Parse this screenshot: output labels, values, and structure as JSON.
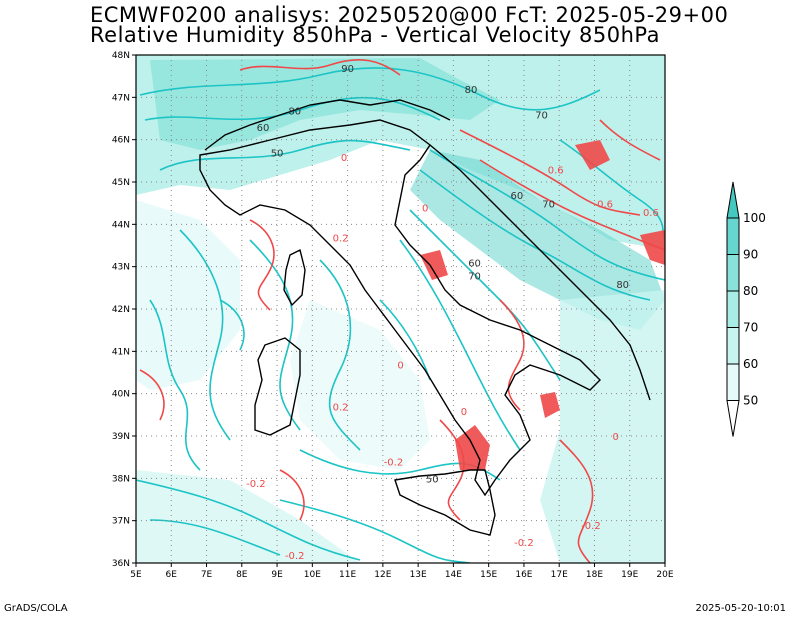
{
  "title_line1": "ECMWF0200 analisys: 20250520@00 FcT: 2025-05-29+00",
  "title_line2": "Relative Humidity 850hPa - Vertical Velocity 850hPa",
  "footer_left": "GrADS/COLA",
  "footer_right": "2025-05-20-10:01",
  "map": {
    "lat_labels": [
      "48N",
      "47N",
      "46N",
      "45N",
      "44N",
      "43N",
      "42N",
      "41N",
      "40N",
      "39N",
      "38N",
      "37N",
      "36N"
    ],
    "lon_labels": [
      "5E",
      "6E",
      "7E",
      "8E",
      "9E",
      "10E",
      "11E",
      "12E",
      "13E",
      "14E",
      "15E",
      "16E",
      "17E",
      "18E",
      "19E",
      "20E"
    ],
    "contour_labels": [
      {
        "text": "90",
        "lon": 11.0,
        "lat": 47.6
      },
      {
        "text": "80",
        "lon": 14.5,
        "lat": 47.1
      },
      {
        "text": "80",
        "lon": 9.5,
        "lat": 46.6
      },
      {
        "text": "60",
        "lon": 8.6,
        "lat": 46.2
      },
      {
        "text": "50",
        "lon": 9.0,
        "lat": 45.6
      },
      {
        "text": "70",
        "lon": 16.5,
        "lat": 46.5
      },
      {
        "text": "60",
        "lon": 15.8,
        "lat": 44.6
      },
      {
        "text": "70",
        "lon": 16.7,
        "lat": 44.4
      },
      {
        "text": "60",
        "lon": 14.6,
        "lat": 43.0
      },
      {
        "text": "70",
        "lon": 14.6,
        "lat": 42.7
      },
      {
        "text": "80",
        "lon": 18.8,
        "lat": 42.5
      },
      {
        "text": "50",
        "lon": 13.4,
        "lat": 37.9
      },
      {
        "text": "0.6",
        "lon": 16.9,
        "lat": 45.2
      },
      {
        "text": "0.6",
        "lon": 18.3,
        "lat": 44.4
      },
      {
        "text": "0.6",
        "lon": 19.6,
        "lat": 44.2
      },
      {
        "text": "-0.2",
        "lon": 12.3,
        "lat": 38.3
      },
      {
        "text": "-0.2",
        "lon": 8.4,
        "lat": 37.8
      },
      {
        "text": "-0.2",
        "lon": 17.9,
        "lat": 36.8
      },
      {
        "text": "-0.2",
        "lon": 16.0,
        "lat": 36.4
      },
      {
        "text": "-0.2",
        "lon": 9.5,
        "lat": 36.1
      },
      {
        "text": "0.2",
        "lon": 10.8,
        "lat": 43.6
      },
      {
        "text": "0.2",
        "lon": 10.8,
        "lat": 39.6
      },
      {
        "text": "0",
        "lon": 10.9,
        "lat": 45.5
      },
      {
        "text": "0",
        "lon": 13.2,
        "lat": 44.3
      },
      {
        "text": "0",
        "lon": 12.5,
        "lat": 40.6
      },
      {
        "text": "0",
        "lon": 14.3,
        "lat": 39.5
      },
      {
        "text": "0",
        "lon": 18.6,
        "lat": 38.9
      }
    ]
  },
  "colorbar": {
    "levels": [
      "100",
      "90",
      "80",
      "70",
      "60",
      "50"
    ],
    "colors": [
      "#44c8c0",
      "#66d6ce",
      "#88e2da",
      "#a8ece6",
      "#c8f4f0",
      "#e6fbf9"
    ]
  },
  "colors": {
    "rh_cyan": "#1cc4c6",
    "omega_red": "#f04848",
    "border": "#000000"
  }
}
